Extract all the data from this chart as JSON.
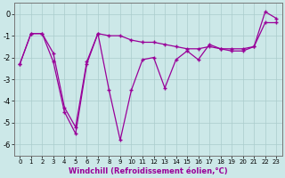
{
  "line1_x": [
    0,
    1,
    2,
    3,
    4,
    5,
    6,
    7,
    8,
    9,
    10,
    11,
    12,
    13,
    14,
    15,
    16,
    17,
    18,
    19,
    20,
    21,
    22,
    23
  ],
  "line1_y": [
    -2.3,
    -0.9,
    -0.9,
    -2.2,
    -4.5,
    -5.5,
    -2.3,
    -0.9,
    -3.5,
    -5.8,
    -3.5,
    -2.1,
    -2.0,
    -3.4,
    -2.1,
    -1.7,
    -2.1,
    -1.4,
    -1.6,
    -1.6,
    -1.6,
    -1.5,
    0.1,
    -0.2
  ],
  "line2_x": [
    0,
    1,
    2,
    3,
    4,
    5,
    6,
    7,
    8,
    9,
    10,
    11,
    12,
    13,
    14,
    15,
    16,
    17,
    18,
    19,
    20,
    21,
    22,
    23
  ],
  "line2_y": [
    -2.3,
    -0.9,
    -0.9,
    -1.8,
    -4.3,
    -5.2,
    -2.2,
    -0.9,
    -1.0,
    -1.0,
    -1.2,
    -1.3,
    -1.3,
    -1.4,
    -1.5,
    -1.6,
    -1.6,
    -1.5,
    -1.6,
    -1.7,
    -1.7,
    -1.5,
    -0.4,
    -0.4
  ],
  "line_color": "#990099",
  "bg_color": "#cce8e8",
  "grid_color": "#aacccc",
  "xlabel": "Windchill (Refroidissement éolien,°C)",
  "xlim": [
    -0.5,
    23.5
  ],
  "ylim": [
    -6.5,
    0.5
  ],
  "xticks": [
    0,
    1,
    2,
    3,
    4,
    5,
    6,
    7,
    8,
    9,
    10,
    11,
    12,
    13,
    14,
    15,
    16,
    17,
    18,
    19,
    20,
    21,
    22,
    23
  ],
  "yticks": [
    0,
    -1,
    -2,
    -3,
    -4,
    -5,
    -6
  ],
  "marker": "+"
}
